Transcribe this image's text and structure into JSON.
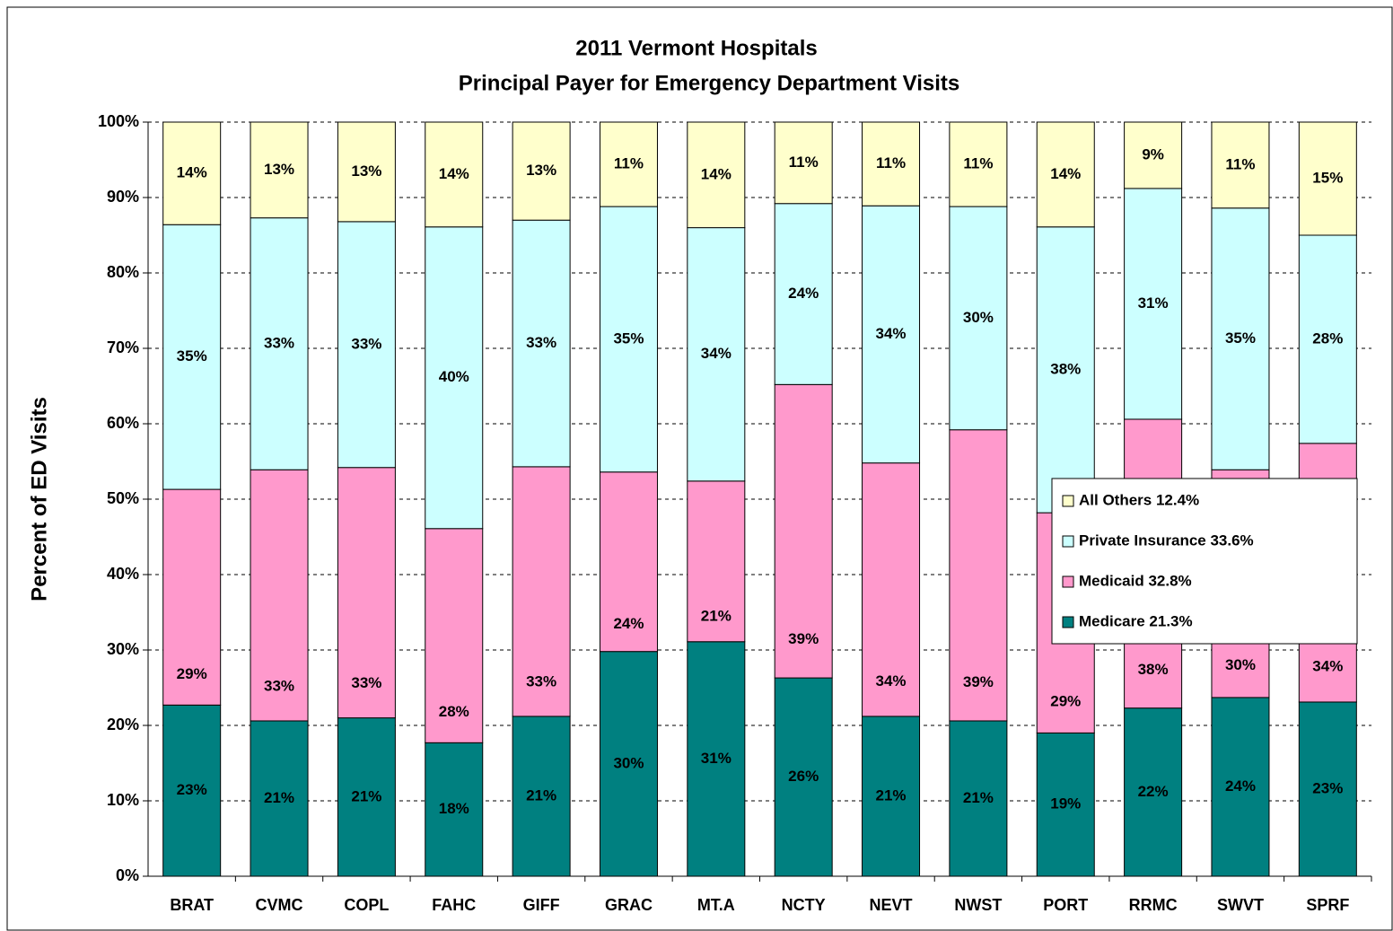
{
  "chart_data": {
    "type": "stacked_bar",
    "title": "2011 Vermont Hospitals",
    "subtitle": "Principal Payer for Emergency Department Visits",
    "y_label": "Percent of ED Visits",
    "categories": [
      "BRAT",
      "CVMC",
      "COPL",
      "FAHC",
      "GIFF",
      "GRAC",
      "MT.A",
      "NCTY",
      "NEVT",
      "NWST",
      "PORT",
      "RRMC",
      "SWVT",
      "SPRF"
    ],
    "series": [
      {
        "name": "Medicare 21.3%",
        "color": "#008080",
        "values": [
          22.7,
          20.6,
          21.0,
          17.7,
          21.2,
          29.8,
          31.1,
          26.3,
          21.2,
          20.6,
          19.0,
          22.3,
          23.7,
          23.1
        ],
        "value_labels": [
          "23%",
          "21%",
          "21%",
          "18%",
          "21%",
          "30%",
          "31%",
          "26%",
          "21%",
          "21%",
          "19%",
          "22%",
          "24%",
          "23%"
        ]
      },
      {
        "name": "Medicaid 32.8%",
        "color": "#ff99cc",
        "values": [
          28.6,
          33.3,
          33.2,
          28.4,
          33.1,
          23.8,
          21.3,
          38.9,
          33.6,
          38.6,
          29.2,
          38.3,
          30.2,
          34.3
        ],
        "value_labels": [
          "29%",
          "33%",
          "33%",
          "28%",
          "33%",
          "24%",
          "21%",
          "39%",
          "34%",
          "39%",
          "29%",
          "38%",
          "30%",
          "34%"
        ]
      },
      {
        "name": "Private Insurance 33.6%",
        "color": "#ccffff",
        "values": [
          35.1,
          33.4,
          32.6,
          40.0,
          32.7,
          35.2,
          33.6,
          24.0,
          34.1,
          29.6,
          37.9,
          30.6,
          34.7,
          27.6
        ],
        "value_labels": [
          "35%",
          "33%",
          "33%",
          "40%",
          "33%",
          "35%",
          "34%",
          "24%",
          "34%",
          "30%",
          "38%",
          "31%",
          "35%",
          "28%"
        ]
      },
      {
        "name": "All Others 12.4%",
        "color": "#ffffcc",
        "values": [
          13.6,
          12.7,
          13.2,
          13.9,
          13.0,
          11.2,
          14.0,
          10.8,
          11.1,
          11.2,
          13.9,
          8.8,
          11.4,
          15.0
        ],
        "value_labels": [
          "14%",
          "13%",
          "13%",
          "14%",
          "13%",
          "11%",
          "14%",
          "11%",
          "11%",
          "11%",
          "14%",
          "9%",
          "11%",
          "15%"
        ]
      }
    ],
    "ylim": [
      0,
      100
    ],
    "yticks": [
      {
        "value": 0,
        "label": "0%"
      },
      {
        "value": 10,
        "label": "10%"
      },
      {
        "value": 20,
        "label": "20%"
      },
      {
        "value": 30,
        "label": "30%"
      },
      {
        "value": 40,
        "label": "40%"
      },
      {
        "value": 50,
        "label": "50%"
      },
      {
        "value": 60,
        "label": "60%"
      },
      {
        "value": 70,
        "label": "70%"
      },
      {
        "value": 80,
        "label": "80%"
      },
      {
        "value": 90,
        "label": "90%"
      },
      {
        "value": 100,
        "label": "100%"
      }
    ],
    "grid": true
  }
}
